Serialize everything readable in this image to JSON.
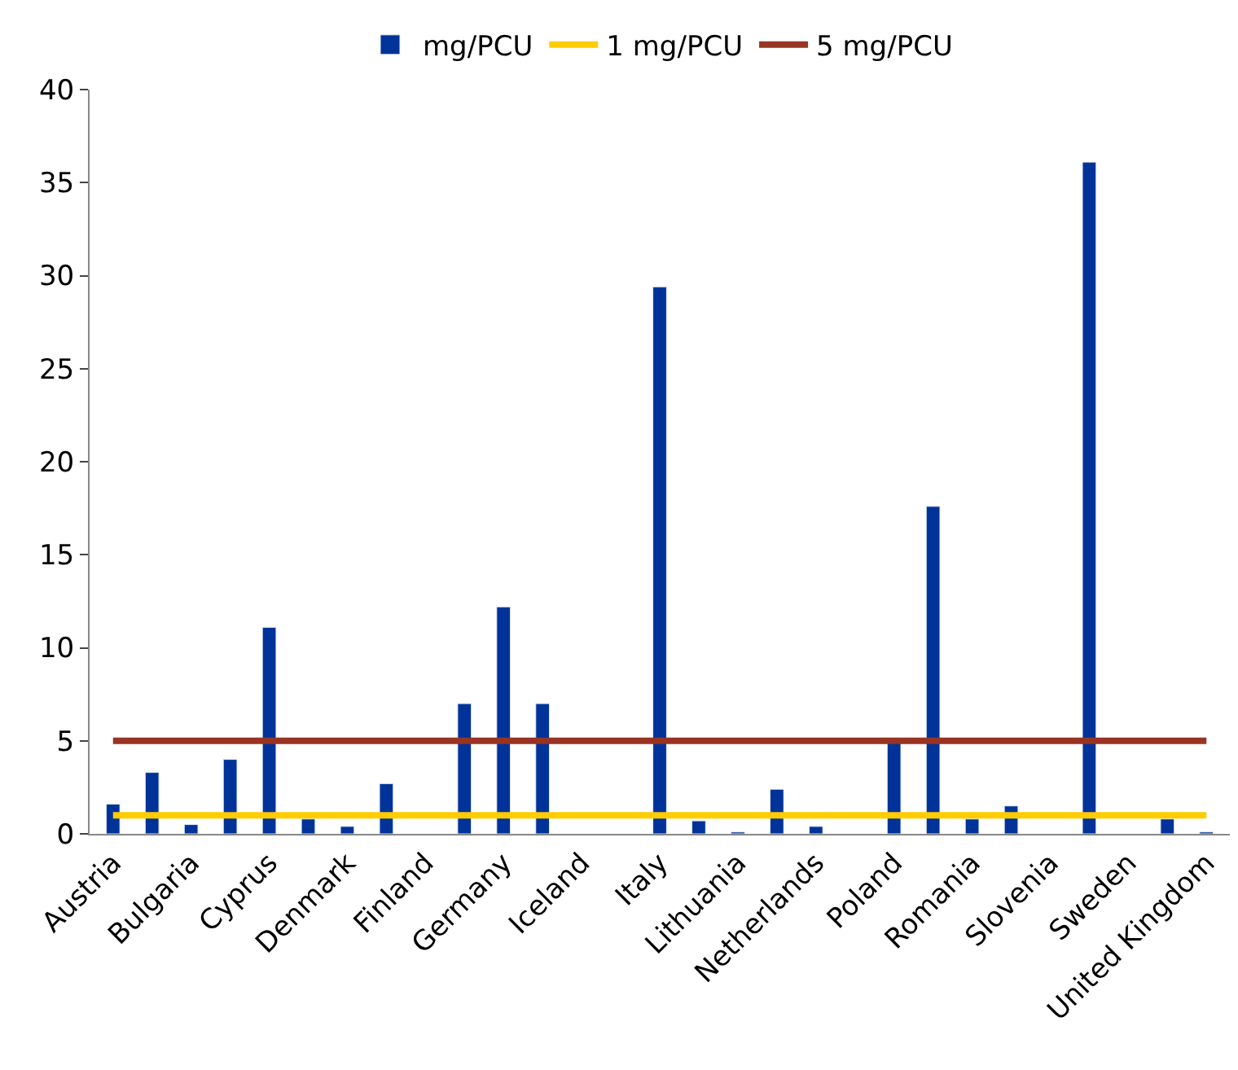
{
  "chart_data": {
    "type": "bar",
    "categories": [
      "Austria",
      null,
      "Bulgaria",
      null,
      "Cyprus",
      null,
      "Denmark",
      null,
      "Finland",
      null,
      "Germany",
      null,
      "Iceland",
      null,
      "Italy",
      null,
      "Lithuania",
      null,
      "Netherlands",
      null,
      "Poland",
      null,
      "Romania",
      null,
      "Slovenia",
      null,
      "Sweden",
      null,
      "United Kingdom"
    ],
    "series": [
      {
        "name": "mg/PCU",
        "color": "#003399",
        "values": [
          1.6,
          3.3,
          0.5,
          4.0,
          11.1,
          0.8,
          0.4,
          2.7,
          null,
          7.0,
          12.2,
          7.0,
          null,
          null,
          29.4,
          0.7,
          0.1,
          2.4,
          0.4,
          null,
          4.9,
          17.6,
          0.8,
          1.5,
          null,
          36.1,
          null,
          0.8,
          0.1
        ]
      },
      {
        "name": "1 mg/PCU",
        "type": "line",
        "color": "#ffcc00",
        "values": [
          1,
          1,
          1,
          1,
          1,
          1,
          1,
          1,
          1,
          1,
          1,
          1,
          1,
          1,
          1,
          1,
          1,
          1,
          1,
          1,
          1,
          1,
          1,
          1,
          1,
          1,
          1,
          1,
          1
        ]
      },
      {
        "name": "5 mg/PCU",
        "type": "line",
        "color": "#993322",
        "values": [
          5,
          5,
          5,
          5,
          5,
          5,
          5,
          5,
          5,
          5,
          5,
          5,
          5,
          5,
          5,
          5,
          5,
          5,
          5,
          5,
          5,
          5,
          5,
          5,
          5,
          5,
          5,
          5,
          5
        ]
      }
    ],
    "ylim": [
      0,
      40
    ],
    "yticks": [
      0,
      5,
      10,
      15,
      20,
      25,
      30,
      35,
      40
    ],
    "grid": false,
    "legend": "top",
    "marker": "none",
    "line_style": "solid"
  }
}
